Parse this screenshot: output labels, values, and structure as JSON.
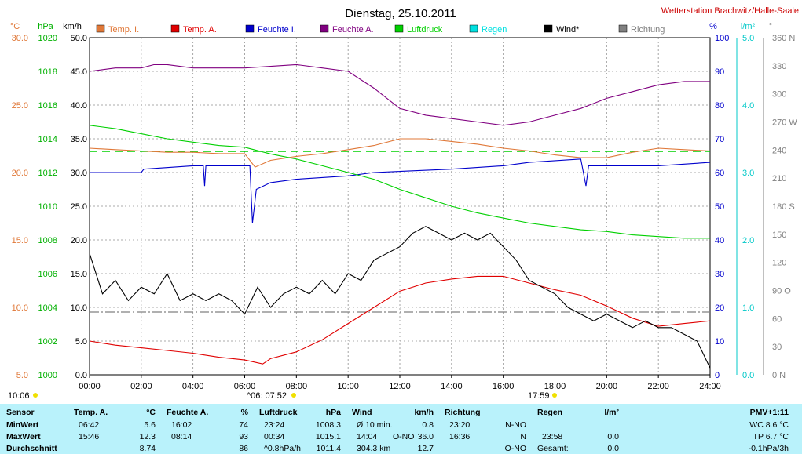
{
  "title": "Dienstag, 25.10.2011",
  "station": "Wetterstation Brachwitz/Halle-Saale",
  "colors": {
    "temp_i": "#e07838",
    "temp_a": "#e00000",
    "feuchte_i": "#0000cc",
    "feuchte_a": "#800080",
    "luftdruck": "#00d000",
    "regen": "#00e0e0",
    "wind": "#000000",
    "richtung": "#808080",
    "grid": "#909090",
    "panel": "#b9f2fb"
  },
  "units": {
    "temp": "°C",
    "hpa": "hPa",
    "kmh": "km/h",
    "pct": "%",
    "rain": "l/m²",
    "dir": "°"
  },
  "legend": [
    {
      "label": "Temp. I.",
      "color": "#e07838"
    },
    {
      "label": "Temp. A.",
      "color": "#e00000"
    },
    {
      "label": "Feuchte I.",
      "color": "#0000cc"
    },
    {
      "label": "Feuchte A.",
      "color": "#800080"
    },
    {
      "label": "Luftdruck",
      "color": "#00d000"
    },
    {
      "label": "Regen",
      "color": "#00e0e0"
    },
    {
      "label": "Wind*",
      "color": "#000000"
    },
    {
      "label": "Richtung",
      "color": "#808080"
    }
  ],
  "axes": {
    "temp_ticks": [
      "30.0",
      "25.0",
      "20.0",
      "15.0",
      "10.0",
      "5.0"
    ],
    "hpa_ticks": [
      "1020",
      "1018",
      "1016",
      "1014",
      "1012",
      "1010",
      "1008",
      "1006",
      "1004",
      "1002",
      "1000"
    ],
    "kmh_ticks": [
      "50.0",
      "45.0",
      "40.0",
      "35.0",
      "30.0",
      "25.0",
      "20.0",
      "15.0",
      "10.0",
      "5.0",
      "0.0"
    ],
    "pct_ticks": [
      "100",
      "90",
      "80",
      "70",
      "60",
      "50",
      "40",
      "30",
      "20",
      "10",
      "0"
    ],
    "rain_ticks": [
      "5.0",
      "4.0",
      "3.0",
      "2.0",
      "1.0",
      "0.0"
    ],
    "dir_ticks": [
      "360 N",
      "330",
      "300",
      "270 W",
      "240",
      "210",
      "180 S",
      "150",
      "120",
      "90 O",
      "60",
      "30",
      "0 N"
    ],
    "x_ticks": [
      "00:00",
      "02:00",
      "04:00",
      "06:00",
      "08:00",
      "10:00",
      "12:00",
      "14:00",
      "16:00",
      "18:00",
      "20:00",
      "22:00",
      "24:00"
    ]
  },
  "sun": {
    "left_time": "10:06",
    "sunrise": "^06: 07:52",
    "sunset": "17:59"
  },
  "chart_data": {
    "type": "line",
    "x_unit": "hours",
    "xlim": [
      0,
      24
    ],
    "ylim_kmh": [
      0,
      50
    ],
    "ylim_temp": [
      5,
      30
    ],
    "ylim_hpa": [
      1000,
      1020
    ],
    "ylim_pct": [
      0,
      100
    ],
    "series": [
      {
        "name": "Temp. I.",
        "axis": "temp",
        "points": [
          [
            0,
            21.8
          ],
          [
            1,
            21.7
          ],
          [
            2,
            21.6
          ],
          [
            3,
            21.5
          ],
          [
            4,
            21.5
          ],
          [
            5,
            21.4
          ],
          [
            6,
            21.4
          ],
          [
            6.4,
            20.4
          ],
          [
            7,
            20.9
          ],
          [
            8,
            21.2
          ],
          [
            9,
            21.4
          ],
          [
            10,
            21.7
          ],
          [
            11,
            22.0
          ],
          [
            12,
            22.5
          ],
          [
            13,
            22.5
          ],
          [
            14,
            22.3
          ],
          [
            15,
            22.1
          ],
          [
            16,
            21.8
          ],
          [
            17,
            21.6
          ],
          [
            18,
            21.3
          ],
          [
            19,
            21.1
          ],
          [
            20,
            21.1
          ],
          [
            21,
            21.5
          ],
          [
            22,
            21.8
          ],
          [
            23,
            21.7
          ],
          [
            24,
            21.6
          ]
        ]
      },
      {
        "name": "Temp. A.",
        "axis": "temp",
        "points": [
          [
            0,
            7.5
          ],
          [
            1,
            7.2
          ],
          [
            2,
            7.0
          ],
          [
            3,
            6.8
          ],
          [
            4,
            6.6
          ],
          [
            5,
            6.3
          ],
          [
            6,
            6.1
          ],
          [
            6.7,
            5.8
          ],
          [
            7,
            6.2
          ],
          [
            8,
            6.7
          ],
          [
            9,
            7.6
          ],
          [
            10,
            8.8
          ],
          [
            11,
            10.0
          ],
          [
            12,
            11.2
          ],
          [
            13,
            11.8
          ],
          [
            14,
            12.1
          ],
          [
            15,
            12.3
          ],
          [
            16,
            12.3
          ],
          [
            17,
            11.8
          ],
          [
            18,
            11.3
          ],
          [
            19,
            10.9
          ],
          [
            20,
            10.1
          ],
          [
            21,
            9.2
          ],
          [
            22,
            8.6
          ],
          [
            23,
            8.8
          ],
          [
            24,
            9.0
          ]
        ]
      },
      {
        "name": "Feuchte I.",
        "axis": "pct",
        "points": [
          [
            0,
            60
          ],
          [
            2,
            60
          ],
          [
            2.1,
            61
          ],
          [
            4,
            62
          ],
          [
            4.4,
            62
          ],
          [
            4.45,
            56
          ],
          [
            4.5,
            62
          ],
          [
            6.2,
            62
          ],
          [
            6.3,
            45
          ],
          [
            6.45,
            55
          ],
          [
            7,
            57
          ],
          [
            8,
            58
          ],
          [
            10,
            59
          ],
          [
            11,
            60
          ],
          [
            14,
            61
          ],
          [
            16,
            62
          ],
          [
            17,
            63
          ],
          [
            19,
            64
          ],
          [
            19.2,
            56
          ],
          [
            19.3,
            62
          ],
          [
            20,
            62
          ],
          [
            22,
            62
          ],
          [
            24,
            63
          ]
        ]
      },
      {
        "name": "Feuchte A.",
        "axis": "pct",
        "points": [
          [
            0,
            90
          ],
          [
            1,
            91
          ],
          [
            2,
            91
          ],
          [
            2.5,
            92
          ],
          [
            3,
            92
          ],
          [
            4,
            91
          ],
          [
            6,
            91
          ],
          [
            8,
            92
          ],
          [
            9,
            91
          ],
          [
            10,
            90
          ],
          [
            11,
            85
          ],
          [
            12,
            79
          ],
          [
            13,
            77
          ],
          [
            14,
            76
          ],
          [
            15,
            75
          ],
          [
            16,
            74
          ],
          [
            17,
            75
          ],
          [
            18,
            77
          ],
          [
            19,
            79
          ],
          [
            20,
            82
          ],
          [
            21,
            84
          ],
          [
            22,
            86
          ],
          [
            23,
            87
          ],
          [
            24,
            87
          ]
        ]
      },
      {
        "name": "Luftdruck",
        "axis": "hpa",
        "points": [
          [
            0,
            1014.8
          ],
          [
            1,
            1014.6
          ],
          [
            2,
            1014.3
          ],
          [
            3,
            1014.0
          ],
          [
            4,
            1013.8
          ],
          [
            5,
            1013.6
          ],
          [
            6,
            1013.5
          ],
          [
            7,
            1013.1
          ],
          [
            8,
            1012.8
          ],
          [
            9,
            1012.4
          ],
          [
            10,
            1012.0
          ],
          [
            11,
            1011.6
          ],
          [
            12,
            1011.0
          ],
          [
            13,
            1010.5
          ],
          [
            14,
            1010.0
          ],
          [
            15,
            1009.6
          ],
          [
            16,
            1009.3
          ],
          [
            17,
            1009.0
          ],
          [
            18,
            1008.8
          ],
          [
            19,
            1008.6
          ],
          [
            20,
            1008.5
          ],
          [
            21,
            1008.3
          ],
          [
            22,
            1008.2
          ],
          [
            23,
            1008.1
          ],
          [
            24,
            1008.1
          ]
        ]
      },
      {
        "name": "Wind*",
        "axis": "kmh",
        "points": [
          [
            0,
            18
          ],
          [
            0.5,
            12
          ],
          [
            1,
            14
          ],
          [
            1.5,
            11
          ],
          [
            2,
            13
          ],
          [
            2.5,
            12
          ],
          [
            3,
            15
          ],
          [
            3.5,
            11
          ],
          [
            4,
            12
          ],
          [
            4.5,
            11
          ],
          [
            5,
            12
          ],
          [
            5.5,
            11
          ],
          [
            6,
            9
          ],
          [
            6.5,
            13
          ],
          [
            7,
            10
          ],
          [
            7.5,
            12
          ],
          [
            8,
            13
          ],
          [
            8.5,
            12
          ],
          [
            9,
            14
          ],
          [
            9.5,
            12
          ],
          [
            10,
            15
          ],
          [
            10.5,
            14
          ],
          [
            11,
            17
          ],
          [
            11.5,
            18
          ],
          [
            12,
            19
          ],
          [
            12.5,
            21
          ],
          [
            13,
            22
          ],
          [
            13.5,
            21
          ],
          [
            14,
            20
          ],
          [
            14.5,
            21
          ],
          [
            15,
            20
          ],
          [
            15.5,
            21
          ],
          [
            16,
            19
          ],
          [
            16.5,
            17
          ],
          [
            17,
            14
          ],
          [
            17.5,
            13
          ],
          [
            18,
            12
          ],
          [
            18.5,
            10
          ],
          [
            19,
            9
          ],
          [
            19.5,
            8
          ],
          [
            20,
            9
          ],
          [
            20.5,
            8
          ],
          [
            21,
            7
          ],
          [
            21.5,
            8
          ],
          [
            22,
            7
          ],
          [
            22.5,
            7
          ],
          [
            23,
            6
          ],
          [
            23.5,
            5
          ],
          [
            24,
            1
          ]
        ]
      }
    ],
    "reference_lines": [
      {
        "axis": "hpa",
        "value": 1013.25,
        "style": "dashed",
        "color": "#00d000"
      },
      {
        "axis": "kmh",
        "value": 9.3,
        "style": "dashdot",
        "color": "#808080"
      }
    ]
  },
  "summary": {
    "headers": {
      "sensor": "Sensor",
      "temp_a": "Temp. A.",
      "temp_unit": "°C",
      "feuchte_a": "Feuchte A.",
      "feuchte_unit": "%",
      "luftdruck": "Luftdruck",
      "luftdruck_unit": "hPa",
      "wind": "Wind",
      "wind_unit": "km/h",
      "richtung": "Richtung",
      "regen": "Regen",
      "regen_unit": "l/m²",
      "pmv": "PMV+1:11"
    },
    "rows": [
      {
        "label": "MinWert",
        "temp_time": "06:42",
        "temp_val": "5.6",
        "feuchte_time": "16:02",
        "feuchte_val": "74",
        "druck_time": "23:24",
        "druck_val": "1008.3",
        "wind_time": "Ø 10 min.",
        "wind_dir": "",
        "wind_val": "0.8",
        "richtung_time": "23:20",
        "richtung_val": "N-NO",
        "regen_time": "",
        "regen_val": "",
        "extra": "WC 8.6 °C"
      },
      {
        "label": "MaxWert",
        "temp_time": "15:46",
        "temp_val": "12.3",
        "feuchte_time": "08:14",
        "feuchte_val": "93",
        "druck_time": "00:34",
        "druck_val": "1015.1",
        "wind_time": "14:04",
        "wind_dir": "O-NO",
        "wind_val": "36.0",
        "richtung_time": "16:36",
        "richtung_val": "N",
        "regen_time": "23:58",
        "regen_val": "0.0",
        "extra": "TP 6.7 °C"
      },
      {
        "label": "Durchschnitt",
        "temp_time": "",
        "temp_val": "8.74",
        "feuchte_time": "",
        "feuchte_val": "86",
        "druck_time": "^0.8hPa/h",
        "druck_val": "1011.4",
        "wind_time": "304.3 km",
        "wind_dir": "",
        "wind_val": "12.7",
        "richtung_time": "",
        "richtung_val": "O-NO",
        "regen_time": "Gesamt:",
        "regen_val": "0.0",
        "extra": "-0.1hPa/3h"
      }
    ]
  }
}
